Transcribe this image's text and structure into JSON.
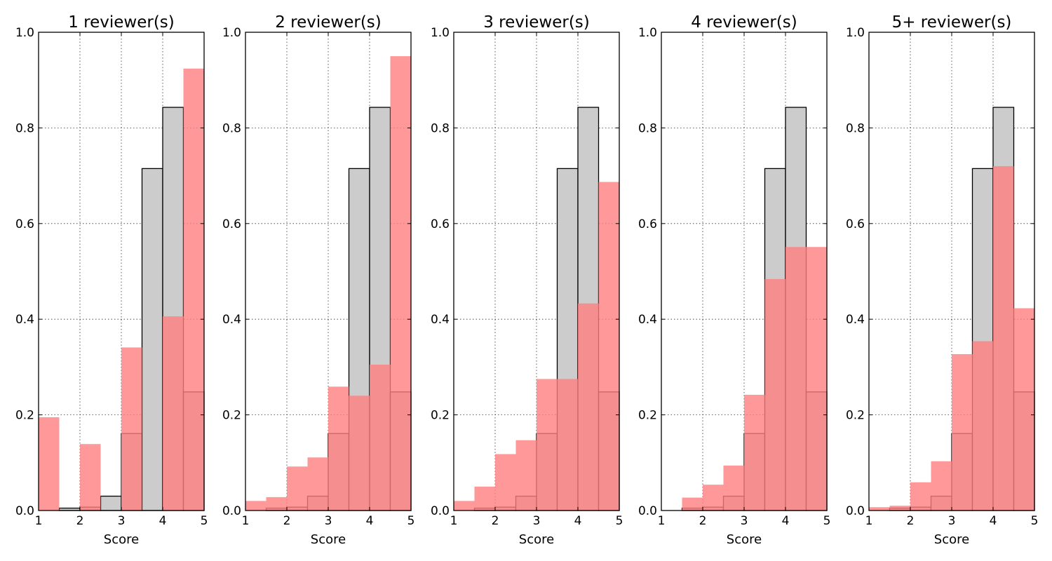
{
  "chart_data": [
    {
      "type": "histogram",
      "title": "1 reviewer(s)",
      "xlabel": "Score",
      "ylabel": "",
      "xlim": [
        1,
        5
      ],
      "ylim": [
        0,
        1.0
      ],
      "bins": [
        1.0,
        1.5,
        2.0,
        2.5,
        3.0,
        3.5,
        4.0,
        4.5,
        5.0
      ],
      "xticks": [
        "1",
        "2",
        "3",
        "4",
        "5"
      ],
      "yticks": [
        "0.0",
        "0.2",
        "0.4",
        "0.6",
        "0.8",
        "1.0"
      ],
      "grid": true,
      "series": [
        {
          "color": "#cccccc",
          "values": [
            0.0,
            0.005,
            0.007,
            0.03,
            0.161,
            0.715,
            0.843,
            0.248
          ]
        },
        {
          "color": "#ff8080",
          "values": [
            0.195,
            0.0,
            0.139,
            0.0,
            0.341,
            0.0,
            0.406,
            0.924
          ]
        }
      ]
    },
    {
      "type": "histogram",
      "title": "2 reviewer(s)",
      "xlabel": "Score",
      "ylabel": "",
      "xlim": [
        1,
        5
      ],
      "ylim": [
        0,
        1.0
      ],
      "bins": [
        1.0,
        1.5,
        2.0,
        2.5,
        3.0,
        3.5,
        4.0,
        4.5,
        5.0
      ],
      "xticks": [
        "1",
        "2",
        "3",
        "4",
        "5"
      ],
      "yticks": [
        "0.0",
        "0.2",
        "0.4",
        "0.6",
        "0.8",
        "1.0"
      ],
      "grid": true,
      "series": [
        {
          "color": "#cccccc",
          "values": [
            0.0,
            0.005,
            0.007,
            0.03,
            0.161,
            0.715,
            0.843,
            0.248
          ]
        },
        {
          "color": "#ff8080",
          "values": [
            0.02,
            0.028,
            0.092,
            0.111,
            0.259,
            0.24,
            0.305,
            0.95
          ]
        }
      ]
    },
    {
      "type": "histogram",
      "title": "3 reviewer(s)",
      "xlabel": "Score",
      "ylabel": "",
      "xlim": [
        1,
        5
      ],
      "ylim": [
        0,
        1.0
      ],
      "bins": [
        1.0,
        1.5,
        2.0,
        2.5,
        3.0,
        3.5,
        4.0,
        4.5,
        5.0
      ],
      "xticks": [
        "1",
        "2",
        "3",
        "4",
        "5"
      ],
      "yticks": [
        "0.0",
        "0.2",
        "0.4",
        "0.6",
        "0.8",
        "1.0"
      ],
      "grid": true,
      "series": [
        {
          "color": "#cccccc",
          "values": [
            0.0,
            0.005,
            0.007,
            0.03,
            0.161,
            0.715,
            0.843,
            0.248
          ]
        },
        {
          "color": "#ff8080",
          "values": [
            0.02,
            0.05,
            0.118,
            0.147,
            0.275,
            0.275,
            0.433,
            0.687
          ]
        }
      ]
    },
    {
      "type": "histogram",
      "title": "4 reviewer(s)",
      "xlabel": "Score",
      "ylabel": "",
      "xlim": [
        1,
        5
      ],
      "ylim": [
        0,
        1.0
      ],
      "bins": [
        1.0,
        1.5,
        2.0,
        2.5,
        3.0,
        3.5,
        4.0,
        4.5,
        5.0
      ],
      "xticks": [
        "1",
        "2",
        "3",
        "4",
        "5"
      ],
      "yticks": [
        "0.0",
        "0.2",
        "0.4",
        "0.6",
        "0.8",
        "1.0"
      ],
      "grid": true,
      "series": [
        {
          "color": "#cccccc",
          "values": [
            0.0,
            0.005,
            0.007,
            0.03,
            0.161,
            0.715,
            0.843,
            0.248
          ]
        },
        {
          "color": "#ff8080",
          "values": [
            0.0,
            0.027,
            0.054,
            0.094,
            0.242,
            0.484,
            0.551,
            0.551
          ]
        }
      ]
    },
    {
      "type": "histogram",
      "title": "5+ reviewer(s)",
      "xlabel": "Score",
      "ylabel": "",
      "xlim": [
        1,
        5
      ],
      "ylim": [
        0,
        1.0
      ],
      "bins": [
        1.0,
        1.5,
        2.0,
        2.5,
        3.0,
        3.5,
        4.0,
        4.5,
        5.0
      ],
      "xticks": [
        "1",
        "2",
        "3",
        "4",
        "5"
      ],
      "yticks": [
        "0.0",
        "0.2",
        "0.4",
        "0.6",
        "0.8",
        "1.0"
      ],
      "grid": true,
      "series": [
        {
          "color": "#cccccc",
          "values": [
            0.0,
            0.005,
            0.007,
            0.03,
            0.161,
            0.715,
            0.843,
            0.248
          ]
        },
        {
          "color": "#ff8080",
          "values": [
            0.007,
            0.01,
            0.059,
            0.103,
            0.327,
            0.354,
            0.72,
            0.423
          ]
        }
      ]
    }
  ]
}
